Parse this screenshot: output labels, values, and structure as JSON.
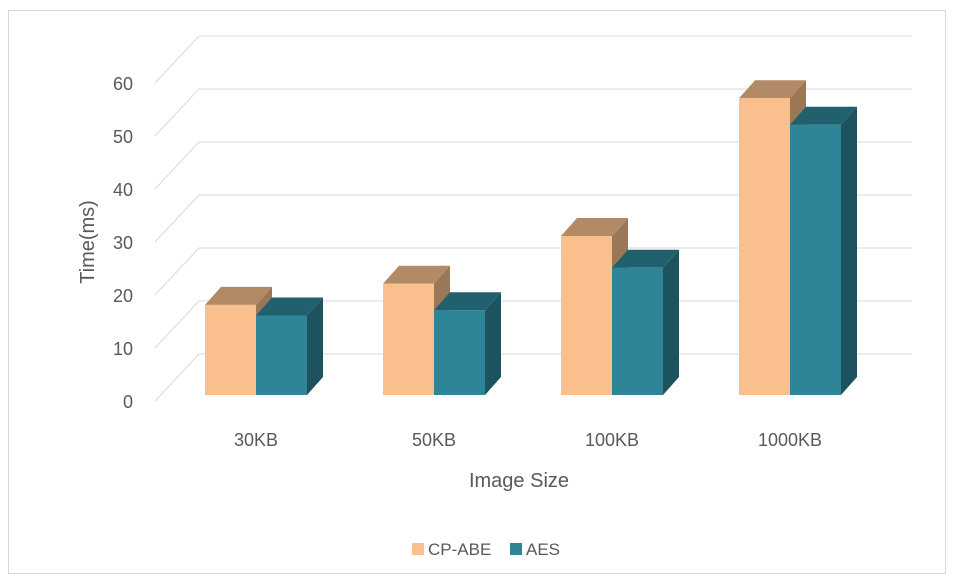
{
  "chart_data": {
    "type": "bar",
    "categories": [
      "30KB",
      "50KB",
      "100KB",
      "1000KB"
    ],
    "series": [
      {
        "name": "CP-ABE",
        "values": [
          17,
          21,
          30,
          56
        ],
        "color": "#F9C08D"
      },
      {
        "name": "AES",
        "values": [
          15,
          16,
          24,
          51
        ],
        "color": "#2E8597"
      }
    ],
    "xlabel": "Image Size",
    "ylabel": "Time(ms)",
    "ylim": [
      0,
      60
    ],
    "yticks": [
      0,
      10,
      20,
      30,
      40,
      50,
      60
    ],
    "grid": true,
    "legend": "bottom",
    "style": "3d-clustered-column"
  }
}
